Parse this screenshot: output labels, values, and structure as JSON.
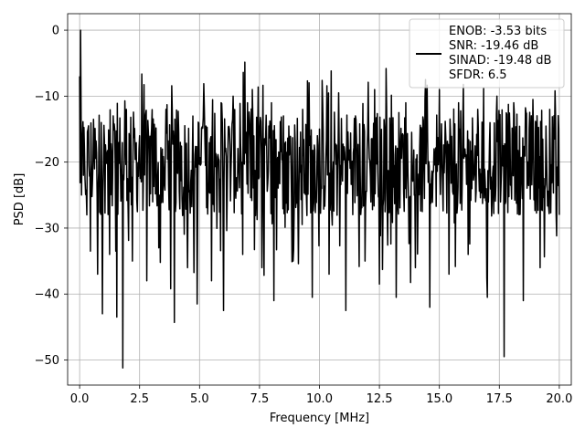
{
  "chart_data": {
    "type": "line",
    "title": "",
    "xlabel": "Frequency [MHz]",
    "ylabel": "PSD [dB]",
    "xlim": [
      -0.5,
      20.5
    ],
    "ylim": [
      -53.8,
      2.5
    ],
    "xticks": [
      0.0,
      2.5,
      5.0,
      7.5,
      10.0,
      12.5,
      15.0,
      17.5,
      20.0
    ],
    "xtick_labels": [
      "0.0",
      "2.5",
      "5.0",
      "7.5",
      "10.0",
      "12.5",
      "15.0",
      "17.5",
      "20.0"
    ],
    "yticks": [
      0,
      -10,
      -20,
      -30,
      -40,
      -50
    ],
    "ytick_labels": [
      "0",
      "−10",
      "−20",
      "−30",
      "−40",
      "−50"
    ],
    "grid": true,
    "legend_position": "top-right",
    "legend_entries": [
      "ENOB: -3.53 bits",
      "SNR: -19.46 dB",
      "SINAD: -19.48 dB",
      "SFDR: 6.5"
    ],
    "series": [
      {
        "color": "#000000",
        "points": [
          [
            0.0,
            -7
          ],
          [
            0.04,
            0.0
          ],
          [
            0.08,
            -25
          ],
          [
            0.12,
            -16
          ],
          [
            0.16,
            -22
          ],
          [
            0.2,
            -18
          ],
          [
            0.3,
            -28
          ],
          [
            0.35,
            -15
          ],
          [
            0.45,
            -33.5
          ],
          [
            0.6,
            -17
          ],
          [
            0.75,
            -37
          ],
          [
            0.9,
            -14
          ],
          [
            0.95,
            -43
          ],
          [
            1.1,
            -19
          ],
          [
            1.25,
            -34
          ],
          [
            1.4,
            -13
          ],
          [
            1.55,
            -43.5
          ],
          [
            1.7,
            -21
          ],
          [
            1.8,
            -51.2
          ],
          [
            1.95,
            -12
          ],
          [
            2.2,
            -35
          ],
          [
            2.5,
            -16
          ],
          [
            2.8,
            -38
          ],
          [
            3.0,
            -15
          ],
          [
            3.3,
            -33
          ],
          [
            3.6,
            -12
          ],
          [
            3.95,
            -44.3
          ],
          [
            4.2,
            -17
          ],
          [
            4.5,
            -36
          ],
          [
            4.9,
            -41.5
          ],
          [
            5.2,
            -12
          ],
          [
            5.5,
            -38
          ],
          [
            5.9,
            -11
          ],
          [
            6.0,
            -42.5
          ],
          [
            6.4,
            -10
          ],
          [
            6.8,
            -34
          ],
          [
            7.2,
            -9
          ],
          [
            7.6,
            -36
          ],
          [
            8.0,
            -11
          ],
          [
            8.1,
            -41
          ],
          [
            8.5,
            -13
          ],
          [
            8.9,
            -35
          ],
          [
            9.3,
            -12
          ],
          [
            9.7,
            -40.5
          ],
          [
            10.0,
            -15
          ],
          [
            10.4,
            -37
          ],
          [
            10.8,
            -9.5
          ],
          [
            11.1,
            -42.5
          ],
          [
            11.5,
            -13
          ],
          [
            11.9,
            -35
          ],
          [
            12.3,
            -9
          ],
          [
            12.5,
            -38.5
          ],
          [
            12.8,
            -12
          ],
          [
            13.2,
            -40.5
          ],
          [
            13.6,
            -11
          ],
          [
            14.0,
            -36
          ],
          [
            14.4,
            -10.5
          ],
          [
            14.6,
            -42
          ],
          [
            15.0,
            -9
          ],
          [
            15.4,
            -37
          ],
          [
            15.8,
            -11
          ],
          [
            16.2,
            -34
          ],
          [
            16.6,
            -12
          ],
          [
            17.0,
            -40.5
          ],
          [
            17.4,
            -10
          ],
          [
            17.7,
            -49.5
          ],
          [
            18.1,
            -11
          ],
          [
            18.5,
            -41
          ],
          [
            18.9,
            -10.5
          ],
          [
            19.2,
            -36
          ],
          [
            19.6,
            -12
          ],
          [
            20.0,
            -28
          ]
        ]
      }
    ]
  }
}
